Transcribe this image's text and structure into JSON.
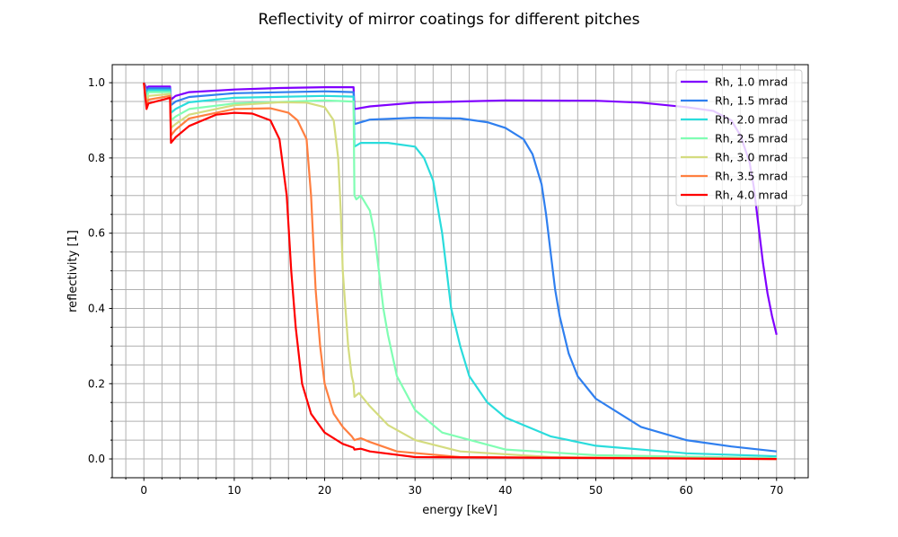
{
  "chart_data": {
    "type": "line",
    "title": "Reflectivity of mirror coatings for different pitches",
    "xlabel": "energy [keV]",
    "ylabel": "reflectivity [1]",
    "xlim": [
      -3.5,
      73.5
    ],
    "ylim": [
      -0.05,
      1.048
    ],
    "xticks": [
      0,
      10,
      20,
      30,
      40,
      50,
      60,
      70
    ],
    "yticks": [
      0.0,
      0.2,
      0.4,
      0.6,
      0.8,
      1.0
    ],
    "ytick_labels": [
      "0.0",
      "0.2",
      "0.4",
      "0.6",
      "0.8",
      "1.0"
    ],
    "grid": "major and minor",
    "legend_position": "top-right",
    "series": [
      {
        "name": "Rh, 1.0 mrad",
        "color": "#8000ff",
        "x": [
          0,
          0.3,
          0.5,
          2.9,
          3.0,
          3.5,
          5,
          10,
          15,
          20,
          23.2,
          23.3,
          25,
          30,
          40,
          50,
          55,
          60,
          63,
          65,
          66,
          67,
          67.5,
          68,
          68.5,
          69,
          69.5,
          70
        ],
        "y": [
          1.0,
          0.985,
          0.99,
          0.99,
          0.955,
          0.965,
          0.975,
          0.982,
          0.986,
          0.988,
          0.988,
          0.93,
          0.937,
          0.947,
          0.953,
          0.952,
          0.947,
          0.935,
          0.925,
          0.9,
          0.86,
          0.79,
          0.72,
          0.62,
          0.52,
          0.44,
          0.38,
          0.33
        ]
      },
      {
        "name": "Rh, 1.5 mrad",
        "color": "#2f7fef",
        "x": [
          0,
          0.3,
          0.5,
          2.9,
          3.0,
          3.5,
          5,
          10,
          20,
          23.2,
          23.3,
          25,
          30,
          35,
          38,
          40,
          42,
          43,
          44,
          44.5,
          45,
          45.5,
          46,
          47,
          48,
          50,
          55,
          60,
          65,
          70
        ],
        "y": [
          1.0,
          0.975,
          0.985,
          0.985,
          0.94,
          0.95,
          0.962,
          0.972,
          0.977,
          0.975,
          0.89,
          0.902,
          0.907,
          0.905,
          0.895,
          0.88,
          0.85,
          0.81,
          0.73,
          0.65,
          0.55,
          0.45,
          0.38,
          0.28,
          0.22,
          0.16,
          0.085,
          0.05,
          0.033,
          0.02
        ]
      },
      {
        "name": "Rh, 2.0 mrad",
        "color": "#2adcdc",
        "x": [
          0,
          0.3,
          0.5,
          2.9,
          3.0,
          3.5,
          5,
          10,
          20,
          23.2,
          23.3,
          24,
          27,
          30,
          31,
          32,
          33,
          33.5,
          34,
          35,
          36,
          38,
          40,
          45,
          50,
          60,
          70
        ],
        "y": [
          1.0,
          0.965,
          0.98,
          0.98,
          0.92,
          0.93,
          0.948,
          0.96,
          0.965,
          0.963,
          0.83,
          0.84,
          0.84,
          0.83,
          0.8,
          0.74,
          0.6,
          0.5,
          0.4,
          0.3,
          0.22,
          0.15,
          0.11,
          0.06,
          0.035,
          0.015,
          0.007
        ]
      },
      {
        "name": "Rh, 2.5 mrad",
        "color": "#80feb3",
        "x": [
          0,
          0.3,
          0.5,
          2.9,
          3.0,
          3.5,
          5,
          10,
          20,
          23.2,
          23.3,
          23.5,
          24,
          25,
          25.5,
          26,
          26.5,
          27,
          28,
          30,
          33,
          40,
          50,
          70
        ],
        "y": [
          1.0,
          0.955,
          0.975,
          0.975,
          0.9,
          0.91,
          0.93,
          0.945,
          0.953,
          0.95,
          0.7,
          0.69,
          0.7,
          0.66,
          0.6,
          0.5,
          0.4,
          0.33,
          0.22,
          0.13,
          0.07,
          0.025,
          0.01,
          0.002
        ]
      },
      {
        "name": "Rh, 3.0 mrad",
        "color": "#d4dc7f",
        "x": [
          0,
          0.3,
          0.5,
          2.9,
          3.0,
          3.5,
          5,
          10,
          15,
          18,
          20,
          21,
          21.5,
          21.8,
          22,
          22.3,
          22.6,
          23,
          23.2,
          23.3,
          23.8,
          25,
          27,
          30,
          35,
          45,
          70
        ],
        "y": [
          1.0,
          0.945,
          0.965,
          0.97,
          0.88,
          0.89,
          0.915,
          0.94,
          0.948,
          0.947,
          0.935,
          0.9,
          0.8,
          0.65,
          0.5,
          0.4,
          0.3,
          0.22,
          0.2,
          0.165,
          0.175,
          0.14,
          0.09,
          0.05,
          0.02,
          0.005,
          0.0
        ]
      },
      {
        "name": "Rh, 3.5 mrad",
        "color": "#ff7f40",
        "x": [
          0,
          0.3,
          0.5,
          2.9,
          3.0,
          3.5,
          5,
          10,
          14,
          16,
          17,
          18,
          18.5,
          18.8,
          19,
          19.5,
          20,
          21,
          22,
          23,
          23.3,
          24,
          25,
          28,
          35,
          70
        ],
        "y": [
          1.0,
          0.94,
          0.955,
          0.965,
          0.86,
          0.875,
          0.905,
          0.93,
          0.932,
          0.92,
          0.9,
          0.85,
          0.7,
          0.55,
          0.45,
          0.3,
          0.2,
          0.12,
          0.085,
          0.06,
          0.05,
          0.055,
          0.045,
          0.02,
          0.005,
          0.0
        ]
      },
      {
        "name": "Rh, 4.0 mrad",
        "color": "#ff0000",
        "x": [
          0,
          0.3,
          0.5,
          2.9,
          3.0,
          3.5,
          5,
          8,
          10,
          12,
          14,
          15,
          15.8,
          16.3,
          16.8,
          17.5,
          18.5,
          20,
          22,
          23.2,
          23.3,
          24,
          25,
          30,
          70
        ],
        "y": [
          1.0,
          0.93,
          0.945,
          0.96,
          0.84,
          0.855,
          0.885,
          0.915,
          0.92,
          0.918,
          0.9,
          0.85,
          0.7,
          0.5,
          0.35,
          0.2,
          0.12,
          0.07,
          0.04,
          0.03,
          0.025,
          0.027,
          0.02,
          0.005,
          0.0
        ]
      }
    ]
  }
}
